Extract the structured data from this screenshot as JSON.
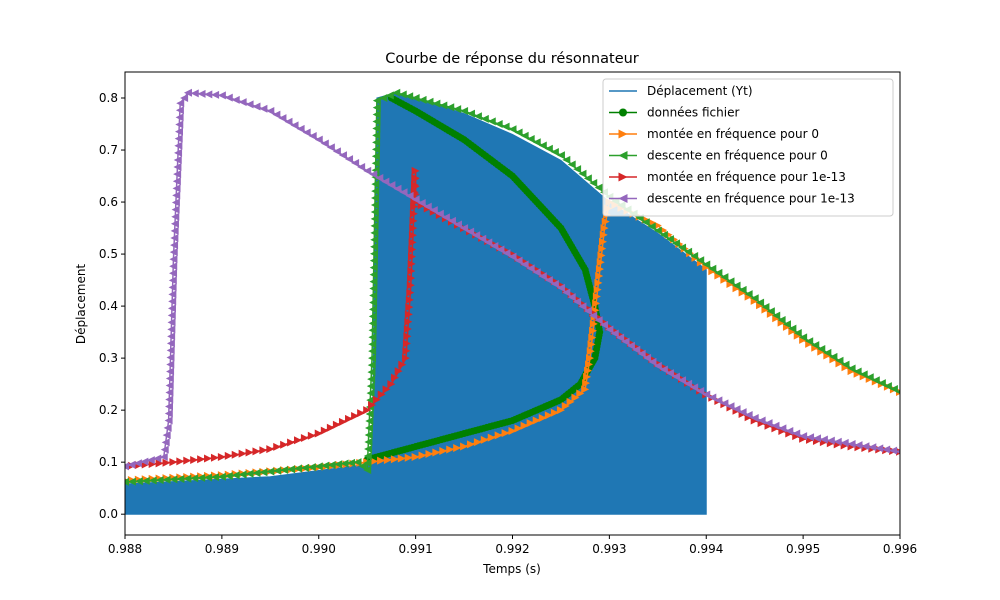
{
  "chart_data": {
    "type": "line",
    "title": "Courbe de réponse du résonnateur",
    "xlabel": "Temps (s)",
    "ylabel": "Déplacement",
    "xlim": [
      0.988,
      0.996
    ],
    "ylim": [
      -0.04,
      0.85
    ],
    "xticks": [
      0.988,
      0.989,
      0.99,
      0.991,
      0.992,
      0.993,
      0.994,
      0.995,
      0.996
    ],
    "xtick_labels": [
      "0.988",
      "0.989",
      "0.990",
      "0.991",
      "0.992",
      "0.993",
      "0.994",
      "0.995",
      "0.996"
    ],
    "yticks": [
      0.0,
      0.1,
      0.2,
      0.3,
      0.4,
      0.5,
      0.6,
      0.7,
      0.8
    ],
    "ytick_labels": [
      "0.0",
      "0.1",
      "0.2",
      "0.3",
      "0.4",
      "0.5",
      "0.6",
      "0.7",
      "0.8"
    ],
    "grid": false,
    "legend_position": "top-right",
    "series": [
      {
        "name": "Déplacement (Yt)",
        "color": "#1f77b4",
        "marker": "none",
        "style": "dense-oscillation",
        "x_start": 0.988,
        "x_end": 0.994,
        "envelope_lower": 0.0,
        "envelope_upper": [
          [
            0.988,
            0.058
          ],
          [
            0.9895,
            0.072
          ],
          [
            0.9905,
            0.096
          ],
          [
            0.99055,
            0.1
          ],
          [
            0.9906,
            0.8
          ],
          [
            0.9908,
            0.81
          ],
          [
            0.991,
            0.8
          ],
          [
            0.9915,
            0.77
          ],
          [
            0.992,
            0.73
          ],
          [
            0.9925,
            0.68
          ],
          [
            0.993,
            0.6
          ],
          [
            0.9935,
            0.54
          ],
          [
            0.994,
            0.47
          ]
        ]
      },
      {
        "name": "données fichier",
        "color": "#008000",
        "marker": "circle",
        "points": [
          [
            0.99075,
            0.8
          ],
          [
            0.991,
            0.775
          ],
          [
            0.9915,
            0.72
          ],
          [
            0.992,
            0.65
          ],
          [
            0.9925,
            0.55
          ],
          [
            0.99275,
            0.47
          ],
          [
            0.99285,
            0.4
          ],
          [
            0.9929,
            0.35
          ],
          [
            0.99285,
            0.3
          ],
          [
            0.9927,
            0.25
          ],
          [
            0.9925,
            0.22
          ],
          [
            0.992,
            0.18
          ],
          [
            0.9915,
            0.155
          ],
          [
            0.991,
            0.13
          ],
          [
            0.9905,
            0.105
          ]
        ]
      },
      {
        "name": "montée en fréquence pour 0",
        "color": "#ff7f0e",
        "marker": "triangle-right",
        "points": [
          [
            0.988,
            0.065
          ],
          [
            0.989,
            0.075
          ],
          [
            0.99,
            0.09
          ],
          [
            0.9905,
            0.1
          ],
          [
            0.991,
            0.11
          ],
          [
            0.9915,
            0.13
          ],
          [
            0.992,
            0.16
          ],
          [
            0.9925,
            0.2
          ],
          [
            0.99275,
            0.24
          ],
          [
            0.9928,
            0.3
          ],
          [
            0.99295,
            0.55
          ],
          [
            0.993,
            0.6
          ],
          [
            0.9935,
            0.555
          ],
          [
            0.994,
            0.475
          ],
          [
            0.9945,
            0.41
          ],
          [
            0.995,
            0.335
          ],
          [
            0.9955,
            0.275
          ],
          [
            0.996,
            0.235
          ]
        ]
      },
      {
        "name": "descente en fréquence pour 0",
        "color": "#2ca02c",
        "marker": "triangle-left",
        "points": [
          [
            0.988,
            0.062
          ],
          [
            0.989,
            0.072
          ],
          [
            0.99,
            0.092
          ],
          [
            0.9904,
            0.1
          ],
          [
            0.9905,
            0.085
          ],
          [
            0.99055,
            0.3
          ],
          [
            0.9906,
            0.795
          ],
          [
            0.9908,
            0.81
          ],
          [
            0.991,
            0.8
          ],
          [
            0.9915,
            0.775
          ],
          [
            0.992,
            0.74
          ],
          [
            0.9925,
            0.69
          ],
          [
            0.993,
            0.61
          ],
          [
            0.9935,
            0.545
          ],
          [
            0.994,
            0.48
          ],
          [
            0.9945,
            0.415
          ],
          [
            0.995,
            0.34
          ],
          [
            0.9955,
            0.28
          ],
          [
            0.996,
            0.235
          ]
        ]
      },
      {
        "name": "montée en fréquence pour 1e-13",
        "color": "#d62728",
        "marker": "triangle-right",
        "points": [
          [
            0.988,
            0.092
          ],
          [
            0.9885,
            0.1
          ],
          [
            0.989,
            0.11
          ],
          [
            0.9895,
            0.125
          ],
          [
            0.99,
            0.155
          ],
          [
            0.9905,
            0.2
          ],
          [
            0.99075,
            0.25
          ],
          [
            0.9909,
            0.3
          ],
          [
            0.99095,
            0.44
          ],
          [
            0.991,
            0.66
          ],
          [
            0.991,
            0.6
          ],
          [
            0.9915,
            0.55
          ],
          [
            0.992,
            0.5
          ],
          [
            0.9925,
            0.44
          ],
          [
            0.993,
            0.36
          ],
          [
            0.9935,
            0.29
          ],
          [
            0.994,
            0.23
          ],
          [
            0.9945,
            0.18
          ],
          [
            0.995,
            0.145
          ],
          [
            0.9955,
            0.13
          ],
          [
            0.996,
            0.12
          ]
        ]
      },
      {
        "name": "descente en fréquence pour 1e-13",
        "color": "#9467bd",
        "marker": "triangle-left",
        "points": [
          [
            0.988,
            0.092
          ],
          [
            0.9884,
            0.11
          ],
          [
            0.98845,
            0.18
          ],
          [
            0.9885,
            0.49
          ],
          [
            0.98857,
            0.79
          ],
          [
            0.98865,
            0.81
          ],
          [
            0.989,
            0.805
          ],
          [
            0.9895,
            0.775
          ],
          [
            0.99,
            0.72
          ],
          [
            0.9905,
            0.66
          ],
          [
            0.991,
            0.605
          ],
          [
            0.9915,
            0.55
          ],
          [
            0.992,
            0.495
          ],
          [
            0.9925,
            0.435
          ],
          [
            0.993,
            0.355
          ],
          [
            0.9935,
            0.285
          ],
          [
            0.994,
            0.23
          ],
          [
            0.9945,
            0.185
          ],
          [
            0.995,
            0.15
          ],
          [
            0.9955,
            0.135
          ],
          [
            0.996,
            0.12
          ]
        ]
      }
    ]
  }
}
